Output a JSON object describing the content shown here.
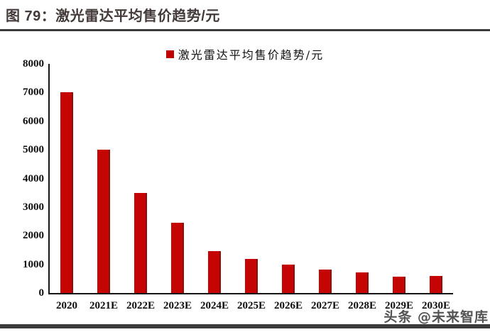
{
  "header": {
    "title": "图 79：激光雷达平均售价趋势/元"
  },
  "legend": {
    "label": "激光雷达平均售价趋势/元",
    "marker_color": "#c00000"
  },
  "watermark": {
    "text": "头条 @未来智库"
  },
  "colors": {
    "bar": "#c50404",
    "bar_edge": "#8f0c0c",
    "rule": "#3b3b3b",
    "axis": "#161616",
    "title_text": "#433a39"
  },
  "chart_data": {
    "type": "bar",
    "title": "图 79：激光雷达平均售价趋势/元",
    "legend_entries": [
      "激光雷达平均售价趋势/元"
    ],
    "legend_position": "top-center",
    "categories": [
      "2020",
      "2021E",
      "2022E",
      "2023E",
      "2024E",
      "2025E",
      "2026E",
      "2027E",
      "2028E",
      "2029E",
      "2030E"
    ],
    "values": [
      7000,
      5000,
      3500,
      2450,
      1470,
      1180,
      980,
      810,
      720,
      575,
      590
    ],
    "xlabel": "",
    "ylabel": "",
    "ylim": [
      0,
      8000
    ],
    "yticks": [
      0,
      1000,
      2000,
      3000,
      4000,
      5000,
      6000,
      7000,
      8000
    ],
    "grid": false,
    "bar_color": "#c00000"
  }
}
